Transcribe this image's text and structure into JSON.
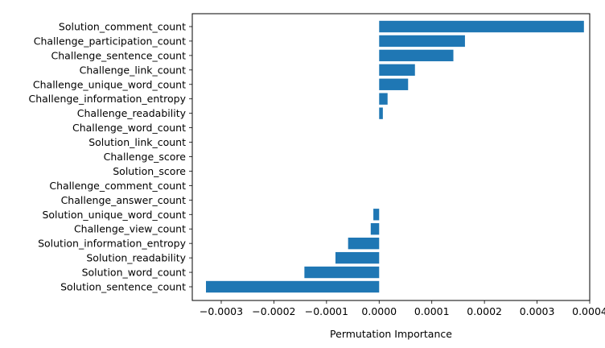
{
  "chart_data": {
    "type": "bar",
    "orientation": "horizontal",
    "title": "",
    "xlabel": "Permutation Importance",
    "ylabel": "",
    "xlim": [
      -0.000355,
      0.0004
    ],
    "xticks": [
      -0.0003,
      -0.0002,
      -0.0001,
      0.0,
      0.0001,
      0.0002,
      0.0003,
      0.0004
    ],
    "xtick_labels": [
      "−0.0003",
      "−0.0002",
      "−0.0001",
      "0.0000",
      "0.0001",
      "0.0002",
      "0.0003",
      "0.0004"
    ],
    "grid": false,
    "legend": false,
    "bar_color": "#1f77b4",
    "categories": [
      "Solution_comment_count",
      "Challenge_participation_count",
      "Challenge_sentence_count",
      "Challenge_link_count",
      "Challenge_unique_word_count",
      "Challenge_information_entropy",
      "Challenge_readability",
      "Challenge_word_count",
      "Solution_link_count",
      "Challenge_score",
      "Solution_score",
      "Challenge_comment_count",
      "Challenge_answer_count",
      "Solution_unique_word_count",
      "Challenge_view_count",
      "Solution_information_entropy",
      "Solution_readability",
      "Solution_word_count",
      "Solution_sentence_count"
    ],
    "values": [
      0.000389,
      0.000163,
      0.000141,
      6.8e-05,
      5.5e-05,
      1.6e-05,
      7e-06,
      0.0,
      0.0,
      0.0,
      0.0,
      0.0,
      0.0,
      -1.1e-05,
      -1.6e-05,
      -5.9e-05,
      -8.3e-05,
      -0.000142,
      -0.000329
    ]
  }
}
